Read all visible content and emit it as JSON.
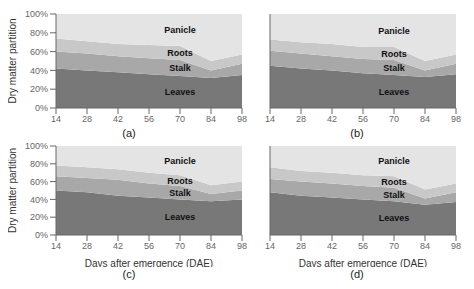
{
  "chart_data": [
    {
      "type": "area",
      "stacked": true,
      "title": "(a)",
      "ylabel": "Dry matter partition",
      "x": [
        14,
        28,
        42,
        56,
        70,
        84,
        98
      ],
      "series": [
        {
          "name": "Leaves",
          "color": "#787878",
          "values": [
            0.42,
            0.4,
            0.38,
            0.36,
            0.34,
            0.32,
            0.35
          ]
        },
        {
          "name": "Stalk",
          "color": "#a8a8a8",
          "values": [
            0.18,
            0.18,
            0.17,
            0.17,
            0.17,
            0.08,
            0.12
          ]
        },
        {
          "name": "Roots",
          "color": "#c8c8c8",
          "values": [
            0.14,
            0.13,
            0.13,
            0.14,
            0.15,
            0.1,
            0.1
          ]
        },
        {
          "name": "Panicle",
          "color": "#e4e4e4",
          "values": [
            0.26,
            0.29,
            0.32,
            0.33,
            0.34,
            0.5,
            0.43
          ]
        }
      ],
      "xlim": [
        14,
        98
      ],
      "xticks": [
        14,
        28,
        42,
        56,
        70,
        84,
        98
      ],
      "ylim": [
        0,
        1.0
      ],
      "yticks": [
        {
          "value": 0.0,
          "label": "0%"
        },
        {
          "value": 0.2,
          "label": "20%"
        },
        {
          "value": 0.4,
          "label": "40%"
        },
        {
          "value": 0.6,
          "label": "60%"
        },
        {
          "value": 0.8,
          "label": "80%"
        },
        {
          "value": 1.0,
          "label": "100%"
        }
      ]
    },
    {
      "type": "area",
      "stacked": true,
      "title": "(b)",
      "tick_labels": "x",
      "x": [
        14,
        28,
        42,
        56,
        70,
        84,
        98
      ],
      "series": [
        {
          "name": "Leaves",
          "color": "#787878",
          "values": [
            0.45,
            0.42,
            0.4,
            0.37,
            0.35,
            0.33,
            0.36
          ]
        },
        {
          "name": "Stalk",
          "color": "#a8a8a8",
          "values": [
            0.16,
            0.16,
            0.15,
            0.15,
            0.16,
            0.07,
            0.11
          ]
        },
        {
          "name": "Roots",
          "color": "#c8c8c8",
          "values": [
            0.12,
            0.12,
            0.13,
            0.13,
            0.14,
            0.1,
            0.1
          ]
        },
        {
          "name": "Panicle",
          "color": "#e4e4e4",
          "values": [
            0.27,
            0.3,
            0.32,
            0.35,
            0.35,
            0.5,
            0.43
          ]
        }
      ],
      "xlim": [
        14,
        98
      ],
      "xticks": [
        14,
        28,
        42,
        56,
        70,
        84,
        98
      ],
      "ylim": [
        0,
        1.0
      ],
      "yticks": [
        0.0,
        0.2,
        0.4,
        0.6,
        0.8,
        1.0
      ]
    },
    {
      "type": "area",
      "stacked": true,
      "title": "(c)",
      "ylabel": "Dry matter partition",
      "xlabel": "Days after emergence (DAE)",
      "x": [
        14,
        28,
        42,
        56,
        70,
        84,
        98
      ],
      "series": [
        {
          "name": "Leaves",
          "color": "#787878",
          "values": [
            0.5,
            0.48,
            0.44,
            0.42,
            0.4,
            0.38,
            0.4
          ]
        },
        {
          "name": "Stalk",
          "color": "#a8a8a8",
          "values": [
            0.16,
            0.16,
            0.18,
            0.16,
            0.15,
            0.08,
            0.1
          ]
        },
        {
          "name": "Roots",
          "color": "#c8c8c8",
          "values": [
            0.12,
            0.12,
            0.12,
            0.12,
            0.12,
            0.1,
            0.1
          ]
        },
        {
          "name": "Panicle",
          "color": "#e4e4e4",
          "values": [
            0.22,
            0.24,
            0.26,
            0.3,
            0.33,
            0.44,
            0.4
          ]
        }
      ],
      "xlim": [
        14,
        98
      ],
      "xticks": [
        14,
        28,
        42,
        56,
        70,
        84,
        98
      ],
      "ylim": [
        0,
        1.0
      ],
      "yticks": [
        {
          "value": 0.0,
          "label": "0%"
        },
        {
          "value": 0.2,
          "label": "20%"
        },
        {
          "value": 0.4,
          "label": "40%"
        },
        {
          "value": 0.6,
          "label": "60%"
        },
        {
          "value": 0.8,
          "label": "80%"
        },
        {
          "value": 1.0,
          "label": "100%"
        }
      ]
    },
    {
      "type": "area",
      "stacked": true,
      "title": "(d)",
      "xlabel": "Days after emergence (DAE)",
      "tick_labels": "x",
      "x": [
        14,
        28,
        42,
        56,
        70,
        84,
        98
      ],
      "series": [
        {
          "name": "Leaves",
          "color": "#787878",
          "values": [
            0.48,
            0.44,
            0.42,
            0.4,
            0.38,
            0.34,
            0.37
          ]
        },
        {
          "name": "Stalk",
          "color": "#a8a8a8",
          "values": [
            0.15,
            0.16,
            0.16,
            0.15,
            0.15,
            0.07,
            0.11
          ]
        },
        {
          "name": "Roots",
          "color": "#c8c8c8",
          "values": [
            0.13,
            0.12,
            0.12,
            0.12,
            0.13,
            0.1,
            0.1
          ]
        },
        {
          "name": "Panicle",
          "color": "#e4e4e4",
          "values": [
            0.24,
            0.28,
            0.3,
            0.33,
            0.34,
            0.49,
            0.42
          ]
        }
      ],
      "xlim": [
        14,
        98
      ],
      "xticks": [
        14,
        28,
        42,
        56,
        70,
        84,
        98
      ],
      "ylim": [
        0,
        1.0
      ],
      "yticks": [
        0.0,
        0.2,
        0.4,
        0.6,
        0.8,
        1.0
      ]
    }
  ]
}
